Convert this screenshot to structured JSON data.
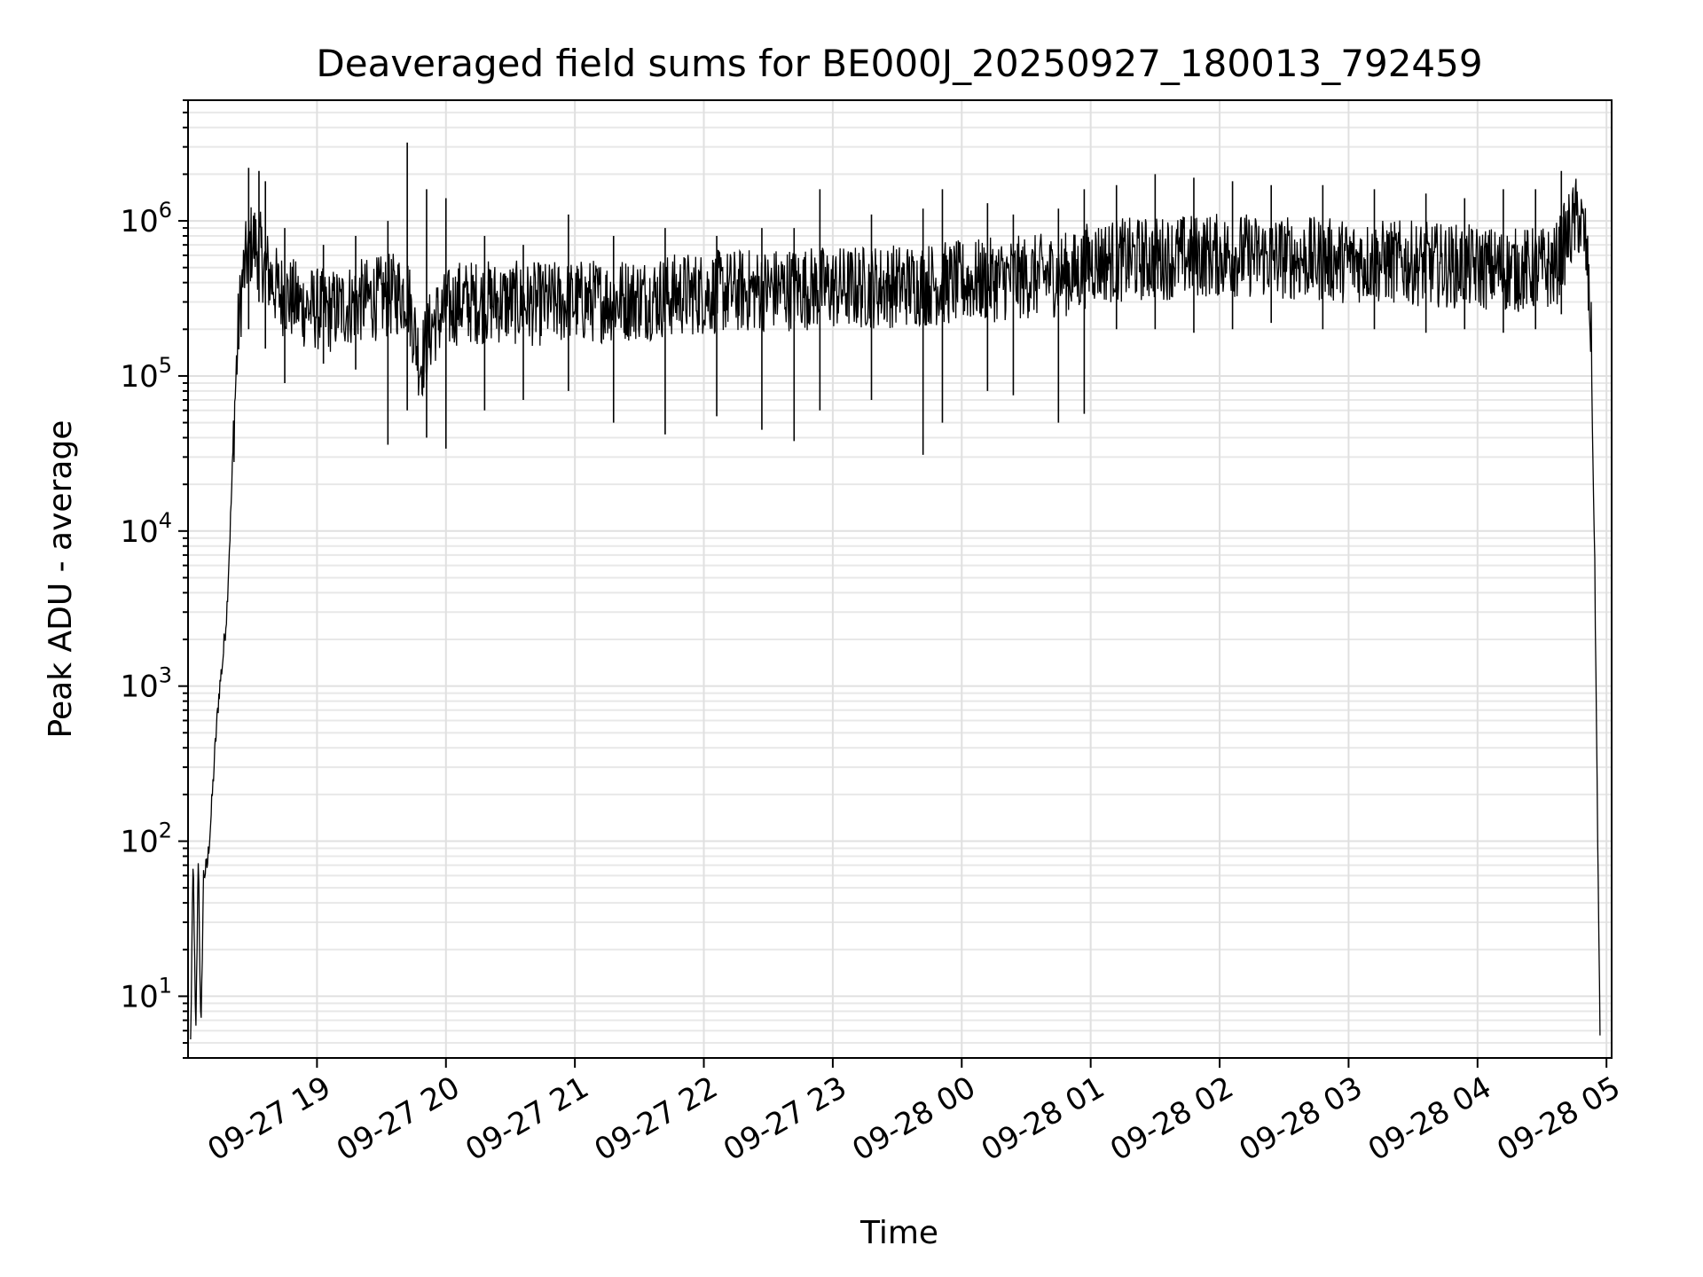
{
  "chart_data": {
    "type": "line",
    "title": "Deaveraged field sums for BE000J_20250927_180013_792459",
    "xlabel": "Time",
    "ylabel": "Peak ADU - average",
    "yscale": "log",
    "ylim": [
      4,
      6000000
    ],
    "xlim_hours_since_1800": [
      0.0,
      11.04
    ],
    "x_ticks": [
      {
        "label": "09-27 19",
        "hour": 1.0
      },
      {
        "label": "09-27 20",
        "hour": 2.0
      },
      {
        "label": "09-27 21",
        "hour": 3.0
      },
      {
        "label": "09-27 22",
        "hour": 4.0
      },
      {
        "label": "09-27 23",
        "hour": 5.0
      },
      {
        "label": "09-28 00",
        "hour": 6.0
      },
      {
        "label": "09-28 01",
        "hour": 7.0
      },
      {
        "label": "09-28 02",
        "hour": 8.0
      },
      {
        "label": "09-28 03",
        "hour": 9.0
      },
      {
        "label": "09-28 04",
        "hour": 10.0
      },
      {
        "label": "09-28 05",
        "hour": 11.0
      }
    ],
    "y_ticks": [
      {
        "base": "10",
        "exp": "1",
        "value": 10
      },
      {
        "base": "10",
        "exp": "2",
        "value": 100
      },
      {
        "base": "10",
        "exp": "3",
        "value": 1000
      },
      {
        "base": "10",
        "exp": "4",
        "value": 10000
      },
      {
        "base": "10",
        "exp": "5",
        "value": 100000
      },
      {
        "base": "10",
        "exp": "6",
        "value": 1000000
      }
    ],
    "grid": true,
    "series": [
      {
        "name": "deaveraged field sum",
        "color": "#000000",
        "points": [
          [
            0.02,
            5
          ],
          [
            0.04,
            80
          ],
          [
            0.06,
            5
          ],
          [
            0.08,
            90
          ],
          [
            0.1,
            5
          ],
          [
            0.12,
            60
          ],
          [
            0.15,
            70
          ],
          [
            0.18,
            150
          ],
          [
            0.21,
            400
          ],
          [
            0.24,
            900
          ],
          [
            0.27,
            1500
          ],
          [
            0.3,
            3000
          ],
          [
            0.33,
            12000
          ],
          [
            0.36,
            60000
          ],
          [
            0.39,
            200000
          ],
          [
            0.42,
            400000
          ],
          [
            0.46,
            600000
          ],
          [
            0.5,
            750000
          ],
          [
            0.55,
            650000
          ],
          [
            0.6,
            500000
          ],
          [
            0.7,
            350000
          ],
          [
            0.9,
            280000
          ],
          [
            1.1,
            260000
          ],
          [
            1.3,
            300000
          ],
          [
            1.5,
            320000
          ],
          [
            1.7,
            350000
          ],
          [
            1.8,
            120000
          ],
          [
            1.9,
            220000
          ],
          [
            2.1,
            300000
          ],
          [
            2.4,
            300000
          ],
          [
            2.7,
            290000
          ],
          [
            3.0,
            300000
          ],
          [
            3.3,
            310000
          ],
          [
            3.6,
            320000
          ],
          [
            3.9,
            340000
          ],
          [
            4.2,
            350000
          ],
          [
            4.5,
            360000
          ],
          [
            4.8,
            370000
          ],
          [
            5.1,
            370000
          ],
          [
            5.4,
            380000
          ],
          [
            5.7,
            390000
          ],
          [
            6.0,
            400000
          ],
          [
            6.3,
            420000
          ],
          [
            6.6,
            440000
          ],
          [
            6.9,
            460000
          ],
          [
            7.0,
            550000
          ],
          [
            7.3,
            560000
          ],
          [
            7.6,
            580000
          ],
          [
            7.9,
            600000
          ],
          [
            8.2,
            600000
          ],
          [
            8.5,
            580000
          ],
          [
            8.8,
            560000
          ],
          [
            9.1,
            550000
          ],
          [
            9.4,
            540000
          ],
          [
            9.7,
            520000
          ],
          [
            10.0,
            500000
          ],
          [
            10.3,
            480000
          ],
          [
            10.6,
            500000
          ],
          [
            10.7,
            800000
          ],
          [
            10.78,
            1100000
          ],
          [
            10.84,
            700000
          ],
          [
            10.88,
            200000
          ],
          [
            10.91,
            5000
          ],
          [
            10.93,
            150
          ],
          [
            10.95,
            5
          ]
        ]
      }
    ],
    "spikes": [
      {
        "hour": 0.47,
        "high": 2200000,
        "low": 200000
      },
      {
        "hour": 0.55,
        "high": 2100000,
        "low": 300000
      },
      {
        "hour": 0.6,
        "high": 1800000,
        "low": 150000
      },
      {
        "hour": 0.75,
        "high": 900000,
        "low": 90000
      },
      {
        "hour": 1.05,
        "high": 700000,
        "low": 120000
      },
      {
        "hour": 1.3,
        "high": 800000,
        "low": 110000
      },
      {
        "hour": 1.55,
        "high": 1000000,
        "low": 36000
      },
      {
        "hour": 1.7,
        "high": 3200000,
        "low": 60000
      },
      {
        "hour": 1.85,
        "high": 1600000,
        "low": 40000
      },
      {
        "hour": 2.0,
        "high": 1400000,
        "low": 34000
      },
      {
        "hour": 2.3,
        "high": 800000,
        "low": 60000
      },
      {
        "hour": 2.6,
        "high": 700000,
        "low": 70000
      },
      {
        "hour": 2.95,
        "high": 1100000,
        "low": 80000
      },
      {
        "hour": 3.3,
        "high": 800000,
        "low": 50000
      },
      {
        "hour": 3.7,
        "high": 900000,
        "low": 42000
      },
      {
        "hour": 4.1,
        "high": 800000,
        "low": 55000
      },
      {
        "hour": 4.45,
        "high": 900000,
        "low": 45000
      },
      {
        "hour": 4.7,
        "high": 900000,
        "low": 38000
      },
      {
        "hour": 4.9,
        "high": 1600000,
        "low": 60000
      },
      {
        "hour": 5.3,
        "high": 1100000,
        "low": 70000
      },
      {
        "hour": 5.7,
        "high": 1200000,
        "low": 31000
      },
      {
        "hour": 5.85,
        "high": 1600000,
        "low": 50000
      },
      {
        "hour": 6.2,
        "high": 1300000,
        "low": 80000
      },
      {
        "hour": 6.4,
        "high": 1100000,
        "low": 75000
      },
      {
        "hour": 6.75,
        "high": 1200000,
        "low": 50000
      },
      {
        "hour": 6.95,
        "high": 1600000,
        "low": 57000
      },
      {
        "hour": 7.2,
        "high": 1700000,
        "low": 200000
      },
      {
        "hour": 7.5,
        "high": 2000000,
        "low": 200000
      },
      {
        "hour": 7.8,
        "high": 1900000,
        "low": 190000
      },
      {
        "hour": 8.1,
        "high": 1800000,
        "low": 200000
      },
      {
        "hour": 8.4,
        "high": 1700000,
        "low": 220000
      },
      {
        "hour": 8.8,
        "high": 1700000,
        "low": 200000
      },
      {
        "hour": 9.2,
        "high": 1600000,
        "low": 200000
      },
      {
        "hour": 9.6,
        "high": 1500000,
        "low": 190000
      },
      {
        "hour": 9.9,
        "high": 1400000,
        "low": 200000
      },
      {
        "hour": 10.2,
        "high": 1600000,
        "low": 190000
      },
      {
        "hour": 10.45,
        "high": 1600000,
        "low": 200000
      },
      {
        "hour": 10.65,
        "high": 2100000,
        "low": 250000
      }
    ]
  }
}
